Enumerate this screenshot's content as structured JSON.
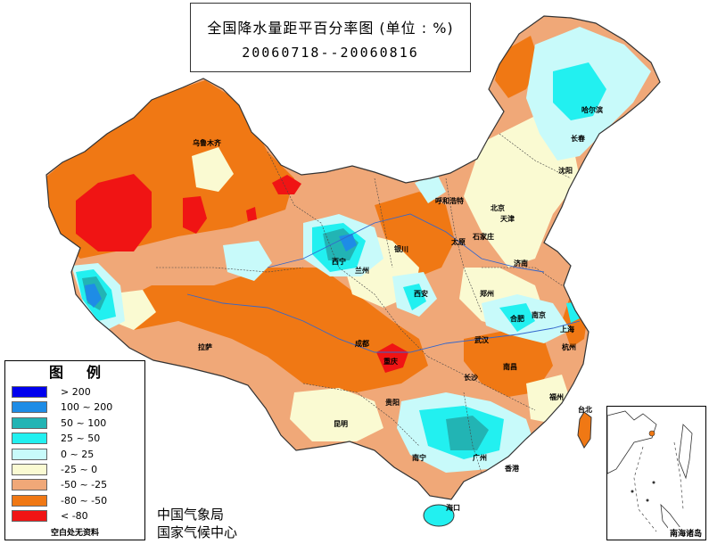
{
  "title": {
    "main": "全国降水量距平百分率图 (单位 : %)",
    "period": "20060718--20060816"
  },
  "legend": {
    "title": "图例",
    "items": [
      {
        "label": "> 200",
        "color": "#0000ee"
      },
      {
        "label": "100 ~ 200",
        "color": "#1e8ce6"
      },
      {
        "label": "50 ~ 100",
        "color": "#22b4b4"
      },
      {
        "label": "25 ~ 50",
        "color": "#22f0f0"
      },
      {
        "label": "0 ~ 25",
        "color": "#c8fafa"
      },
      {
        "label": "-25 ~ 0",
        "color": "#fafad2"
      },
      {
        "label": "-50 ~ -25",
        "color": "#f0a878"
      },
      {
        "label": "-80 ~ -50",
        "color": "#f07814"
      },
      {
        "label": "< -80",
        "color": "#f01414"
      }
    ],
    "note": "空白处无资料"
  },
  "agency": {
    "line1": "中国气象局",
    "line2": "国家气候中心"
  },
  "inset_label": "南海诸岛",
  "cities": [
    "乌鲁木齐",
    "哈尔滨",
    "长春",
    "沈阳",
    "呼和浩特",
    "北京",
    "天津",
    "太原",
    "石家庄",
    "银川",
    "西宁",
    "兰州",
    "济南",
    "西安",
    "郑州",
    "合肥",
    "南京",
    "上海",
    "拉萨",
    "成都",
    "重庆",
    "武汉",
    "杭州",
    "南昌",
    "长沙",
    "贵阳",
    "福州",
    "台北",
    "昆明",
    "南宁",
    "广州",
    "香港",
    "海口"
  ]
}
